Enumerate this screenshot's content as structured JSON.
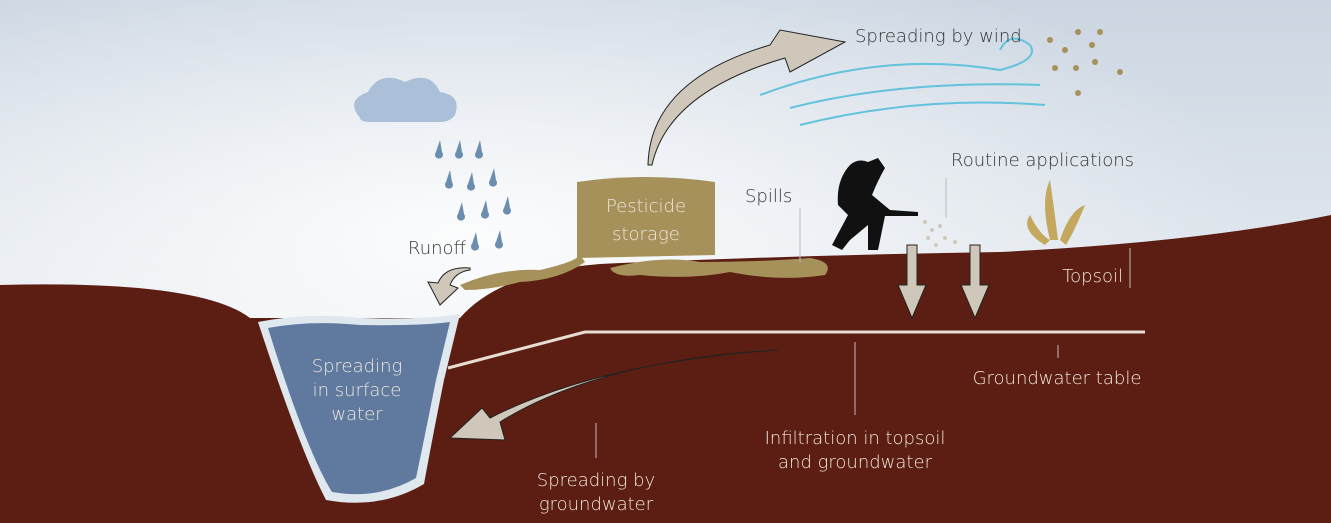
{
  "labels": {
    "wind": [
      "Spreading by wind"
    ],
    "routine": [
      "Routine applications"
    ],
    "storage": [
      "Pesticide",
      "storage"
    ],
    "spills": [
      "Spills"
    ],
    "runoff": [
      "Runoff"
    ],
    "topsoil": [
      "Topsoil"
    ],
    "surface_water": [
      "Spreading",
      "in surface",
      "water"
    ],
    "groundwater_table": [
      "Groundwater table"
    ],
    "infiltration": [
      "Infiltration in topsoil",
      "and groundwater"
    ],
    "groundwater_spread": [
      "Spreading by",
      "groundwater"
    ]
  }
}
